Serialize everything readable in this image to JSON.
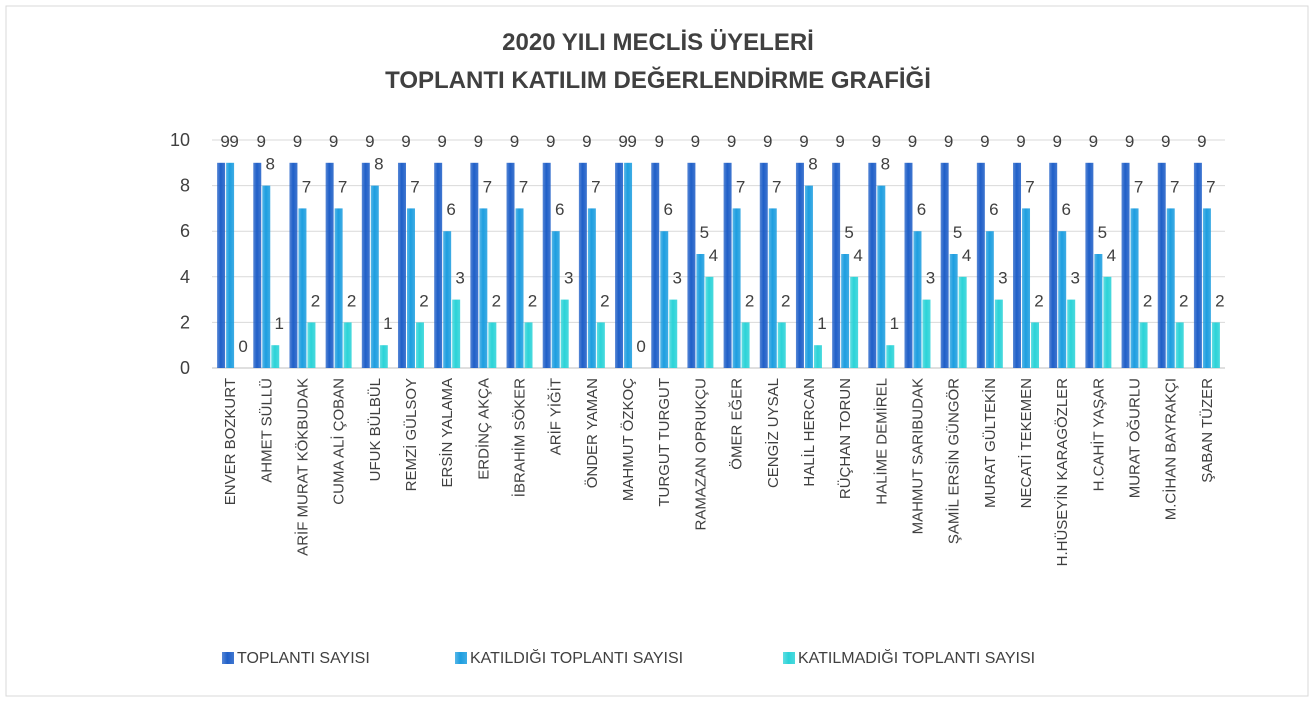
{
  "chart_data": {
    "type": "bar",
    "title": [
      "2020 YILI MECLİS ÜYELERİ",
      "TOPLANTI KATILIM DEĞERLENDİRME GRAFİĞİ"
    ],
    "categories": [
      "ENVER BOZKURT",
      "AHMET SÜLLÜ",
      "ARİF MURAT KÖKBUDAK",
      "CUMA ALİ ÇOBAN",
      "UFUK BÜLBÜL",
      "REMZİ GÜLSOY",
      "ERSİN YALAMA",
      "ERDİNÇ AKÇA",
      "İBRAHİM SÖKER",
      "ARİF YİĞİT",
      "ÖNDER YAMAN",
      "MAHMUT ÖZKOÇ",
      "TURGUT TURGUT",
      "RAMAZAN OPRUKÇU",
      "ÖMER EĞER",
      "CENGİZ UYSAL",
      "HALİL HERCAN",
      "RÜÇHAN TORUN",
      "HALİME DEMİREL",
      "MAHMUT SARIBUDAK",
      "ŞAMİL ERSİN GÜNGÖR",
      "MURAT GÜLTEKİN",
      "NECATİ TEKEMEN",
      "H.HÜSEYİN KARAGÖZLER",
      "H.CAHİT YAŞAR",
      "MURAT OĞURLU",
      "M.CİHAN BAYRAKÇI",
      "ŞABAN TÜZER"
    ],
    "series": [
      {
        "name": "TOPLANTI SAYISI",
        "color": "#1f5fc8",
        "values": [
          9,
          9,
          9,
          9,
          9,
          9,
          9,
          9,
          9,
          9,
          9,
          9,
          9,
          9,
          9,
          9,
          9,
          9,
          9,
          9,
          9,
          9,
          9,
          9,
          9,
          9,
          9,
          9
        ]
      },
      {
        "name": "KATILDIĞI TOPLANTI SAYISI",
        "color": "#1d9ee0",
        "values": [
          9,
          8,
          7,
          7,
          8,
          7,
          6,
          7,
          7,
          6,
          7,
          9,
          6,
          5,
          7,
          7,
          8,
          5,
          8,
          6,
          5,
          6,
          7,
          6,
          5,
          7,
          7,
          7
        ]
      },
      {
        "name": "KATILMADIĞI TOPLANTI SAYISI",
        "color": "#2bd3d8",
        "values": [
          0,
          1,
          2,
          2,
          1,
          2,
          3,
          2,
          2,
          3,
          2,
          0,
          3,
          4,
          2,
          2,
          1,
          4,
          1,
          3,
          4,
          3,
          2,
          3,
          4,
          2,
          2,
          2
        ]
      }
    ],
    "ylim": [
      0,
      10
    ],
    "yticks": [
      0,
      2,
      4,
      6,
      8,
      10
    ],
    "grid": true,
    "legend": "bottom"
  }
}
